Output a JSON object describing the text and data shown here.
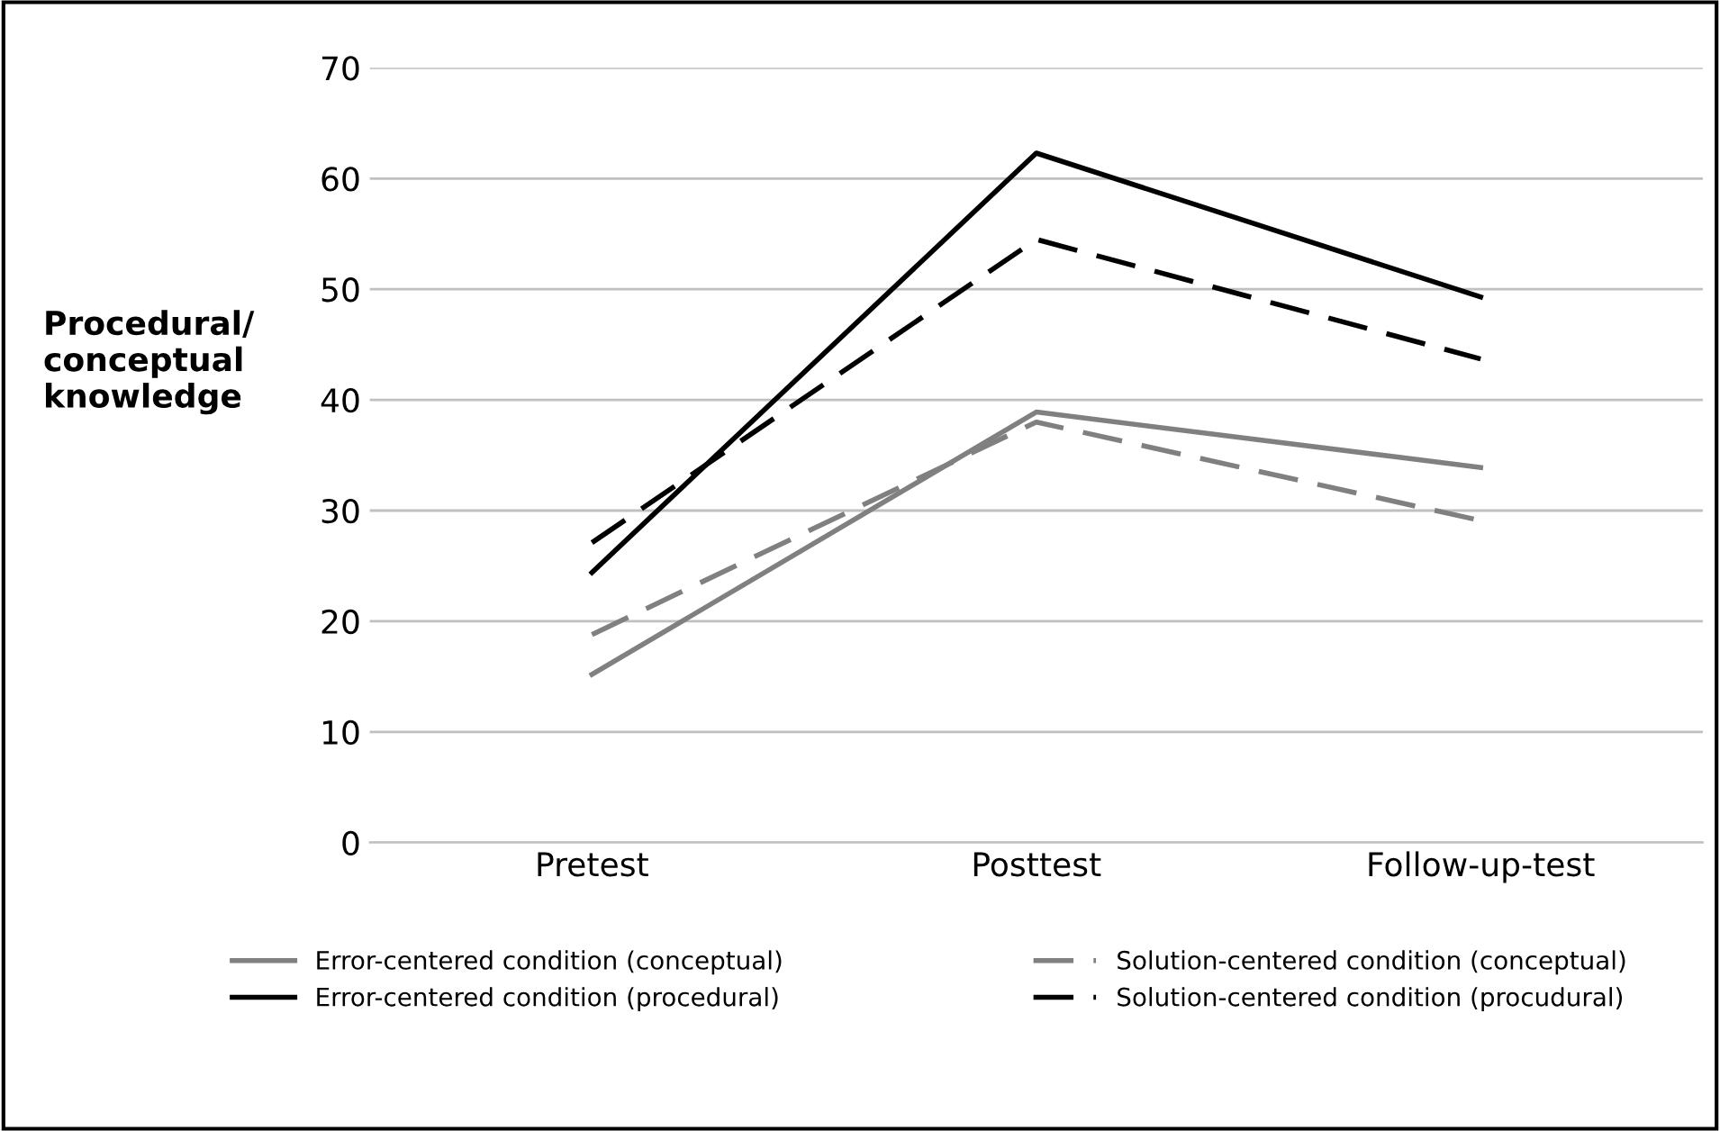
{
  "chart_data": {
    "type": "line",
    "ylabel": "Procedural/\nconceptual\nknowledge",
    "categories": [
      "Pretest",
      "Posttest",
      "Follow-up-test"
    ],
    "series": [
      {
        "name": "Error-centered condition (conceptual)",
        "color": "#808080",
        "line_style": "solid",
        "values": [
          15.2,
          38.9,
          33.9
        ]
      },
      {
        "name": "Error-centered condition (procedural)",
        "color": "#000000",
        "line_style": "solid",
        "values": [
          24.4,
          62.3,
          49.3
        ]
      },
      {
        "name": "Solution-centered condition (conceptual)",
        "color": "#808080",
        "line_style": "dashed",
        "values": [
          18.8,
          38.0,
          29.1
        ]
      },
      {
        "name": "Solution-centered condition (procudural)",
        "color": "#000000",
        "line_style": "dashed",
        "values": [
          27.1,
          54.5,
          43.7
        ]
      }
    ],
    "ylim": [
      0,
      70
    ],
    "yticks": [
      0,
      10,
      20,
      30,
      40,
      50,
      60,
      70
    ],
    "grid": "y",
    "legend": "bottom",
    "marker": "none"
  }
}
